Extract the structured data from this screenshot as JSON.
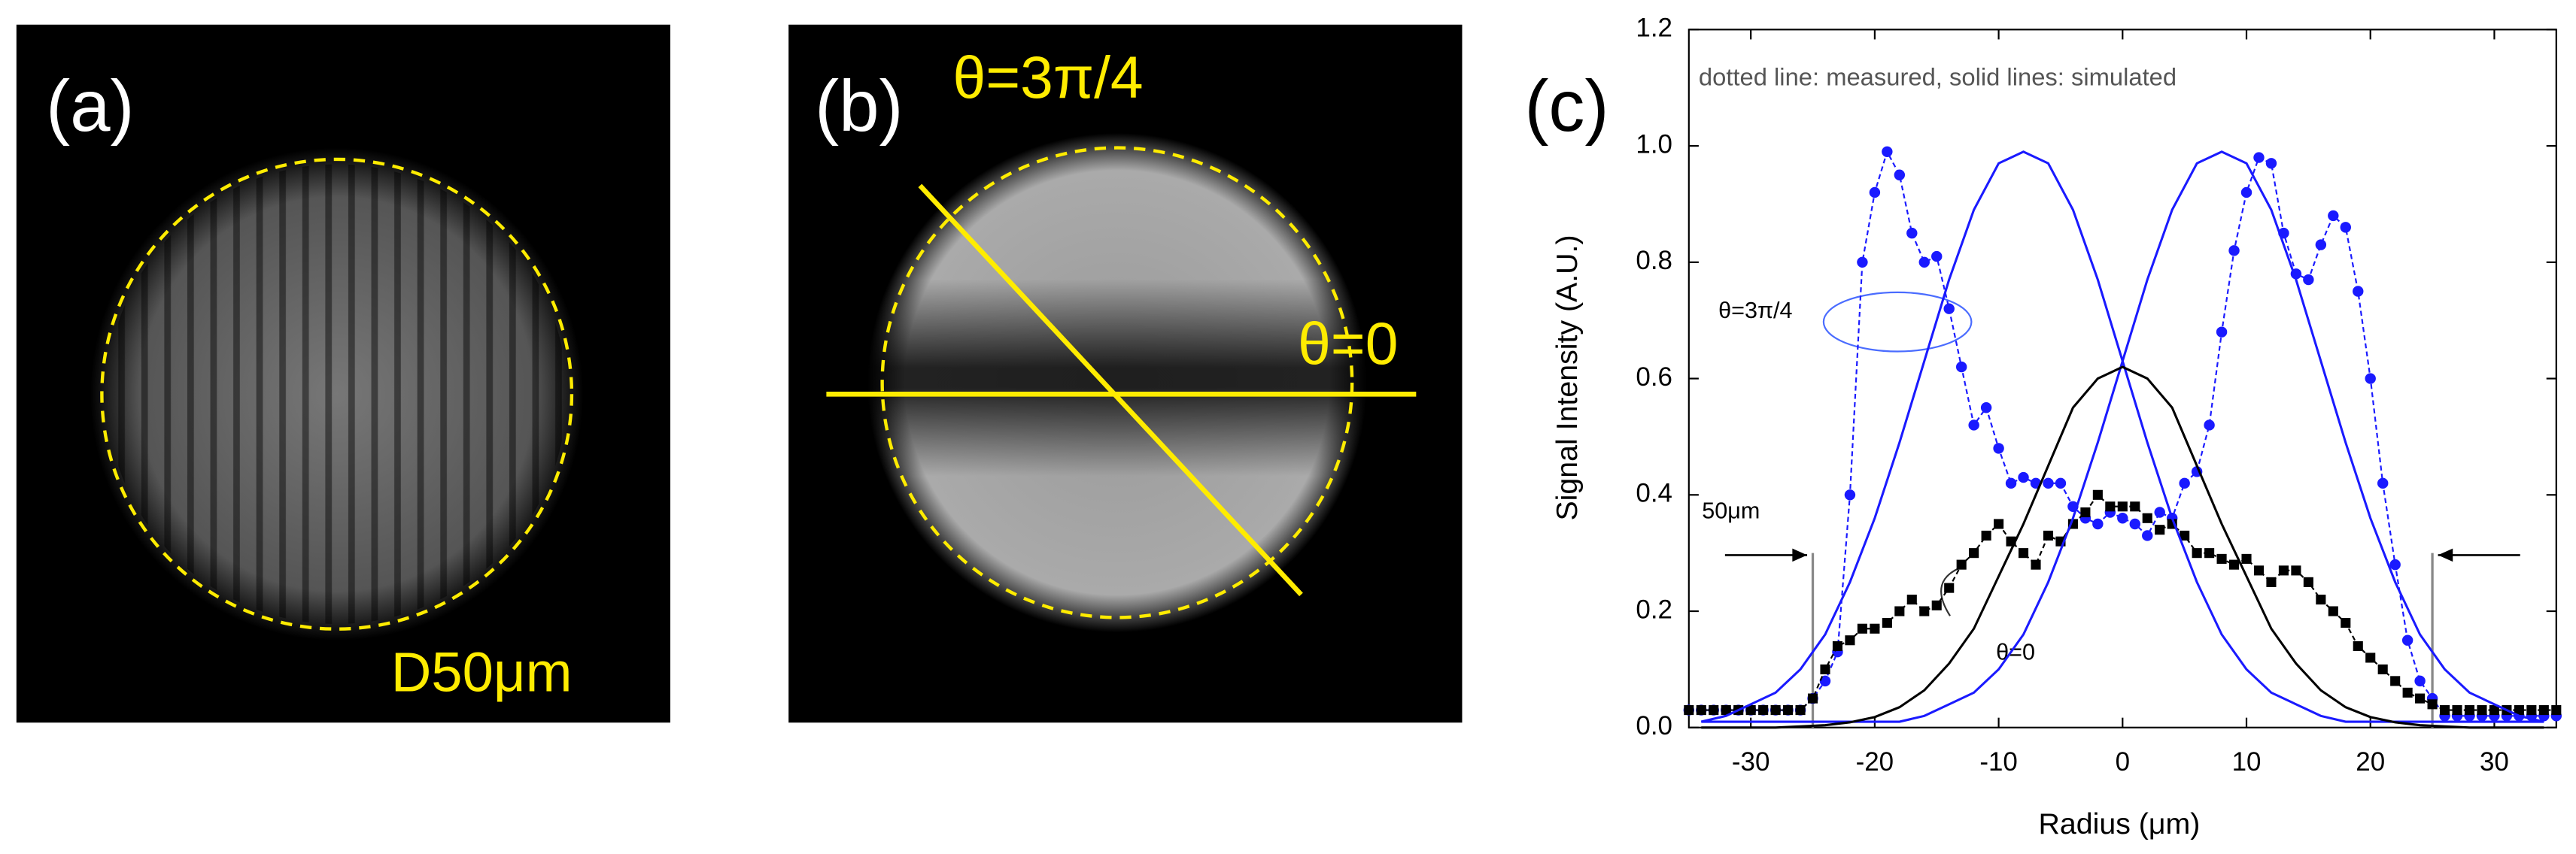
{
  "panels": [
    {
      "label": "(a)",
      "annotation": "D50μm"
    },
    {
      "label": "(b)",
      "annotations": [
        "θ=3π/4",
        "θ=0"
      ]
    }
  ],
  "chart_data": {
    "type": "line",
    "panel_label": "(c)",
    "note": "dotted line: measured, solid lines: simulated",
    "xlabel": "Radius (μm)",
    "ylabel": "Signal Intensity (A.U.)",
    "xlim": [
      -35,
      35
    ],
    "ylim": [
      0,
      1.2
    ],
    "xticks": [
      -30,
      -20,
      -10,
      0,
      10,
      20,
      30
    ],
    "yticks": [
      {
        "value": 0,
        "label": "0.0"
      },
      0.2,
      0.4,
      0.6,
      0.8,
      {
        "value": 1,
        "label": "1.0"
      },
      1.2
    ],
    "vlines": [
      -25,
      25
    ],
    "annotations": [
      "θ=3π/4",
      "θ=0",
      "50μm"
    ],
    "series": [
      {
        "color": "#1a1aff",
        "style": "dotted",
        "marker": "circle",
        "x": [
          -35,
          -34,
          -33,
          -32,
          -31,
          -30,
          -29,
          -28,
          -27,
          -26,
          -25,
          -24,
          -23,
          -22,
          -21,
          -20,
          -19,
          -18,
          -17,
          -16,
          -15,
          -14,
          -13,
          -12,
          -11,
          -10,
          -9,
          -8,
          -7,
          -6,
          -5,
          -4,
          -3,
          -2,
          -1,
          0,
          1,
          2,
          3,
          4,
          5,
          6,
          7,
          8,
          9,
          10,
          11,
          12,
          13,
          14,
          15,
          16,
          17,
          18,
          19,
          20,
          21,
          22,
          23,
          24,
          25,
          26,
          27,
          28,
          29,
          30,
          31,
          32,
          33,
          34,
          35
        ],
        "values": [
          0.03,
          0.03,
          0.03,
          0.03,
          0.03,
          0.03,
          0.03,
          0.03,
          0.03,
          0.03,
          0.05,
          0.08,
          0.13,
          0.4,
          0.8,
          0.92,
          0.99,
          0.95,
          0.85,
          0.8,
          0.81,
          0.72,
          0.62,
          0.52,
          0.55,
          0.48,
          0.42,
          0.43,
          0.42,
          0.42,
          0.42,
          0.38,
          0.36,
          0.35,
          0.37,
          0.36,
          0.35,
          0.33,
          0.37,
          0.36,
          0.42,
          0.44,
          0.52,
          0.68,
          0.82,
          0.92,
          0.98,
          0.97,
          0.85,
          0.78,
          0.77,
          0.83,
          0.88,
          0.86,
          0.75,
          0.6,
          0.42,
          0.28,
          0.15,
          0.08,
          0.05,
          0.02,
          0.02,
          0.02,
          0.02,
          0.02,
          0.02,
          0.02,
          0.02,
          0.02,
          0.02
        ]
      },
      {
        "color": "#000000",
        "style": "dotted",
        "marker": "square",
        "x": [
          -35,
          -34,
          -33,
          -32,
          -31,
          -30,
          -29,
          -28,
          -27,
          -26,
          -25,
          -24,
          -23,
          -22,
          -21,
          -20,
          -19,
          -18,
          -17,
          -16,
          -15,
          -14,
          -13,
          -12,
          -11,
          -10,
          -9,
          -8,
          -7,
          -6,
          -5,
          -4,
          -3,
          -2,
          -1,
          0,
          1,
          2,
          3,
          4,
          5,
          6,
          7,
          8,
          9,
          10,
          11,
          12,
          13,
          14,
          15,
          16,
          17,
          18,
          19,
          20,
          21,
          22,
          23,
          24,
          25,
          26,
          27,
          28,
          29,
          30,
          31,
          32,
          33,
          34,
          35
        ],
        "values": [
          0.03,
          0.03,
          0.03,
          0.03,
          0.03,
          0.03,
          0.03,
          0.03,
          0.03,
          0.03,
          0.05,
          0.1,
          0.14,
          0.15,
          0.17,
          0.17,
          0.18,
          0.2,
          0.22,
          0.2,
          0.21,
          0.24,
          0.28,
          0.3,
          0.33,
          0.35,
          0.32,
          0.3,
          0.28,
          0.33,
          0.32,
          0.35,
          0.37,
          0.4,
          0.38,
          0.38,
          0.38,
          0.36,
          0.34,
          0.35,
          0.33,
          0.3,
          0.3,
          0.29,
          0.28,
          0.29,
          0.27,
          0.25,
          0.27,
          0.27,
          0.25,
          0.22,
          0.2,
          0.18,
          0.14,
          0.12,
          0.1,
          0.08,
          0.06,
          0.05,
          0.04,
          0.03,
          0.03,
          0.03,
          0.03,
          0.03,
          0.03,
          0.03,
          0.03,
          0.03,
          0.03
        ]
      },
      {
        "color": "#1a1aff",
        "style": "solid",
        "x": [
          -34,
          -32,
          -30,
          -28,
          -26,
          -24,
          -22,
          -20,
          -18,
          -16,
          -14,
          -12,
          -10,
          -8,
          -6,
          -4,
          -2,
          0,
          2,
          4,
          6,
          8,
          10,
          12,
          14,
          16,
          18,
          20,
          22,
          24,
          26,
          28,
          30,
          32,
          34
        ],
        "values": [
          0.01,
          0.02,
          0.04,
          0.06,
          0.1,
          0.16,
          0.25,
          0.36,
          0.49,
          0.63,
          0.77,
          0.89,
          0.97,
          0.99,
          0.97,
          0.89,
          0.77,
          0.63,
          0.49,
          0.36,
          0.25,
          0.16,
          0.1,
          0.06,
          0.04,
          0.02,
          0.01,
          0.01,
          0.01,
          0.01,
          0.01,
          0.01,
          0.01,
          0.01,
          0.01
        ]
      },
      {
        "color": "#1a1aff",
        "style": "solid",
        "x": [
          -34,
          -32,
          -30,
          -28,
          -26,
          -24,
          -22,
          -20,
          -18,
          -16,
          -14,
          -12,
          -10,
          -8,
          -6,
          -4,
          -2,
          0,
          2,
          4,
          6,
          8,
          10,
          12,
          14,
          16,
          18,
          20,
          22,
          24,
          26,
          28,
          30,
          32,
          34
        ],
        "values": [
          0.01,
          0.01,
          0.01,
          0.01,
          0.01,
          0.01,
          0.01,
          0.01,
          0.01,
          0.02,
          0.04,
          0.06,
          0.1,
          0.16,
          0.25,
          0.36,
          0.49,
          0.63,
          0.77,
          0.89,
          0.97,
          0.99,
          0.97,
          0.89,
          0.77,
          0.63,
          0.49,
          0.36,
          0.25,
          0.16,
          0.1,
          0.06,
          0.04,
          0.02,
          0.01
        ]
      },
      {
        "color": "#000000",
        "style": "solid",
        "x": [
          -34,
          -32,
          -30,
          -28,
          -26,
          -24,
          -22,
          -20,
          -18,
          -16,
          -14,
          -12,
          -10,
          -8,
          -6,
          -4,
          -2,
          0,
          2,
          4,
          6,
          8,
          10,
          12,
          14,
          16,
          18,
          20,
          22,
          24,
          26,
          28,
          30,
          32,
          34
        ],
        "values": [
          0,
          0,
          0,
          0,
          0.002,
          0.004,
          0.009,
          0.018,
          0.035,
          0.064,
          0.11,
          0.17,
          0.26,
          0.35,
          0.45,
          0.55,
          0.6,
          0.62,
          0.6,
          0.55,
          0.45,
          0.35,
          0.26,
          0.17,
          0.11,
          0.064,
          0.035,
          0.018,
          0.009,
          0.004,
          0.002,
          0,
          0,
          0,
          0
        ]
      }
    ]
  }
}
